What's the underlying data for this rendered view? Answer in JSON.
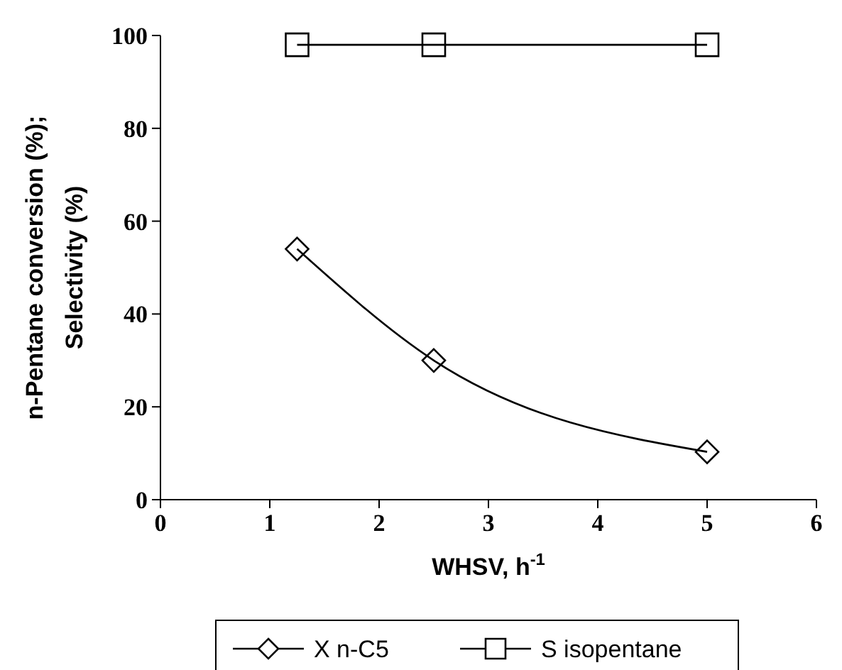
{
  "chart_data": {
    "type": "line",
    "xlabel": "WHSV, h$^{-1}$",
    "ylabel": "n-Pentane conversion (%);\nSelectivity (%)",
    "xlim": [
      0,
      6
    ],
    "xticks": [
      0,
      1,
      2,
      3,
      4,
      5,
      6
    ],
    "ylim": [
      0,
      100
    ],
    "yticks": [
      0,
      20,
      40,
      60,
      80,
      100
    ],
    "grid": false,
    "legend": "bottom",
    "line_style": "solid",
    "series": [
      {
        "name": "X n-C5",
        "color": "#000000",
        "marker": "diamond",
        "x": [
          1.25,
          2.5,
          5
        ],
        "values": [
          54,
          30,
          10.3
        ]
      },
      {
        "name": "S isopentane",
        "color": "#000000",
        "marker": "square",
        "x": [
          1.25,
          2.5,
          5
        ],
        "values": [
          98,
          98,
          98
        ]
      }
    ]
  }
}
